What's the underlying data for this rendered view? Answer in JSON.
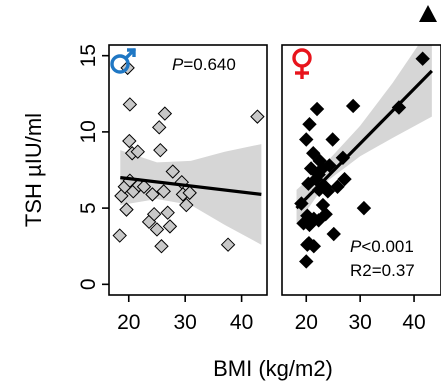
{
  "chart_data": [
    {
      "type": "scatter",
      "panel": "male",
      "symbol": "♂",
      "symbol_color": "#1f77c4",
      "marker_color": "#c8c8c8",
      "p_label": "P",
      "p_value": "=0.640",
      "xlabel": "BMI (kg/m2)",
      "ylabel": "TSH µIU/ml",
      "xlim": [
        16.5,
        44.5
      ],
      "ylim": [
        -0.7,
        15.7
      ],
      "xticks": [
        "20",
        "30",
        "40"
      ],
      "yticks": [
        "0",
        "5",
        "10",
        "15"
      ],
      "grid": false,
      "points": [
        {
          "x": 19.8,
          "y": 14.2
        },
        {
          "x": 20.2,
          "y": 11.8
        },
        {
          "x": 20.1,
          "y": 9.4
        },
        {
          "x": 20.6,
          "y": 8.6
        },
        {
          "x": 21.6,
          "y": 8.7
        },
        {
          "x": 25.4,
          "y": 10.3
        },
        {
          "x": 26.4,
          "y": 11.2
        },
        {
          "x": 25.6,
          "y": 8.8
        },
        {
          "x": 42.8,
          "y": 11.0
        },
        {
          "x": 18.7,
          "y": 5.8
        },
        {
          "x": 19.3,
          "y": 6.4
        },
        {
          "x": 19.6,
          "y": 4.9
        },
        {
          "x": 20.2,
          "y": 6.8
        },
        {
          "x": 20.8,
          "y": 6.1
        },
        {
          "x": 21.8,
          "y": 6.5
        },
        {
          "x": 22.7,
          "y": 6.4
        },
        {
          "x": 18.4,
          "y": 3.2
        },
        {
          "x": 23.6,
          "y": 4.1
        },
        {
          "x": 24.2,
          "y": 5.9
        },
        {
          "x": 25.0,
          "y": 3.6
        },
        {
          "x": 25.8,
          "y": 2.5
        },
        {
          "x": 26.2,
          "y": 6.1
        },
        {
          "x": 26.9,
          "y": 4.7
        },
        {
          "x": 27.8,
          "y": 7.4
        },
        {
          "x": 27.3,
          "y": 3.8
        },
        {
          "x": 29.4,
          "y": 6.7
        },
        {
          "x": 29.6,
          "y": 5.9
        },
        {
          "x": 30.2,
          "y": 5.2
        },
        {
          "x": 30.8,
          "y": 6.0
        },
        {
          "x": 37.6,
          "y": 2.6
        },
        {
          "x": 24.5,
          "y": 4.6
        }
      ],
      "fit": {
        "x": [
          18.5,
          43.5
        ],
        "y": [
          7.0,
          5.9
        ]
      },
      "ci_band": {
        "x": [
          18.5,
          25,
          31,
          37,
          43.5
        ],
        "lower": [
          5.2,
          5.6,
          5.2,
          3.9,
          2.6
        ],
        "upper": [
          8.8,
          8.0,
          8.1,
          8.7,
          9.2
        ]
      }
    },
    {
      "type": "scatter",
      "panel": "female",
      "symbol": "♀",
      "symbol_color": "#e8141c",
      "marker_color": "#000000",
      "p_label": "P",
      "p_value": "<0.001",
      "r2_text": "R2=0.37",
      "xlim": [
        15.5,
        45
      ],
      "ylim": [
        -0.7,
        15.7
      ],
      "xticks": [
        "20",
        "30",
        "40"
      ],
      "grid": false,
      "points": [
        {
          "x": 20.0,
          "y": 9.5
        },
        {
          "x": 20.6,
          "y": 10.5
        },
        {
          "x": 22.0,
          "y": 11.5
        },
        {
          "x": 21.3,
          "y": 8.6
        },
        {
          "x": 22.5,
          "y": 8.1
        },
        {
          "x": 24.9,
          "y": 9.5
        },
        {
          "x": 28.7,
          "y": 11.7
        },
        {
          "x": 37.2,
          "y": 11.6
        },
        {
          "x": 41.6,
          "y": 14.8
        },
        {
          "x": 20.4,
          "y": 6.6
        },
        {
          "x": 20.9,
          "y": 7.6
        },
        {
          "x": 21.8,
          "y": 6.9
        },
        {
          "x": 22.3,
          "y": 7.2
        },
        {
          "x": 23.0,
          "y": 7.6
        },
        {
          "x": 23.5,
          "y": 6.4
        },
        {
          "x": 24.3,
          "y": 7.8
        },
        {
          "x": 24.0,
          "y": 6.1
        },
        {
          "x": 25.8,
          "y": 6.4
        },
        {
          "x": 27.1,
          "y": 6.9
        },
        {
          "x": 26.8,
          "y": 8.3
        },
        {
          "x": 19.1,
          "y": 5.3
        },
        {
          "x": 20.2,
          "y": 4.5
        },
        {
          "x": 20.6,
          "y": 3.9
        },
        {
          "x": 21.4,
          "y": 4.3
        },
        {
          "x": 22.3,
          "y": 4.2
        },
        {
          "x": 23.6,
          "y": 4.6
        },
        {
          "x": 25.1,
          "y": 3.3
        },
        {
          "x": 30.7,
          "y": 5.0
        },
        {
          "x": 19.5,
          "y": 4.0
        },
        {
          "x": 20.2,
          "y": 2.6
        },
        {
          "x": 20.5,
          "y": 2.7
        },
        {
          "x": 21.4,
          "y": 2.5
        },
        {
          "x": 20.0,
          "y": 1.5
        },
        {
          "x": 22.4,
          "y": 6.2
        },
        {
          "x": 23.1,
          "y": 5.2
        }
      ],
      "fit": {
        "x": [
          18.2,
          43.3
        ],
        "y": [
          5.0,
          14.0
        ]
      },
      "ci_band": {
        "x": [
          18.2,
          24,
          30,
          36,
          43.3
        ],
        "lower": [
          3.9,
          6.8,
          8.4,
          9.6,
          11.0
        ],
        "upper": [
          6.2,
          8.1,
          10.4,
          13.2,
          17.0
        ]
      },
      "offscale_marker": {
        "x": 44.0,
        "y": "above"
      }
    }
  ]
}
